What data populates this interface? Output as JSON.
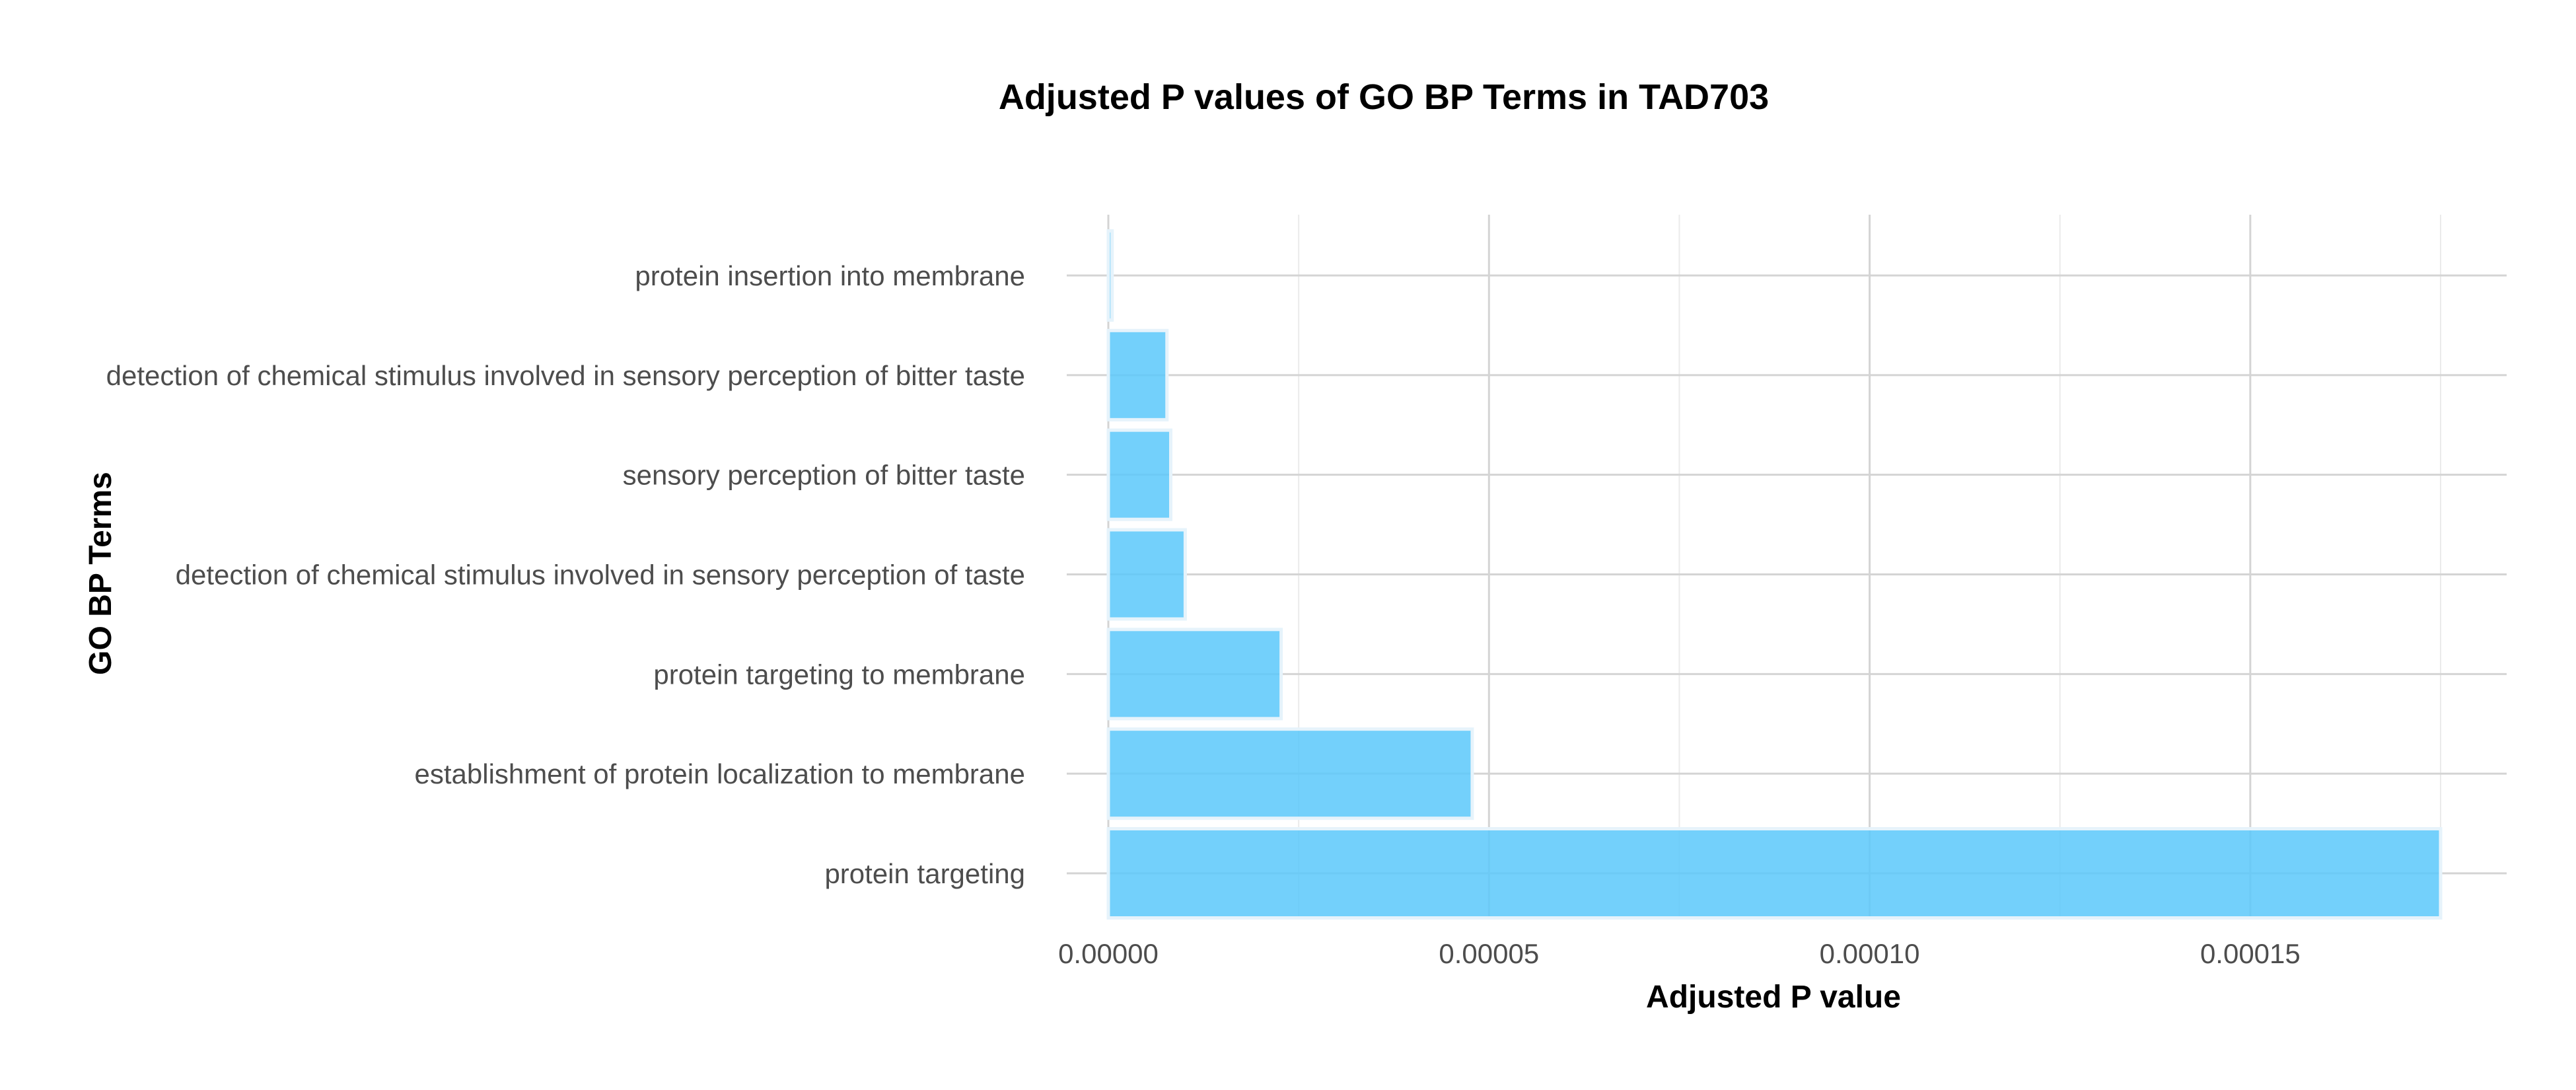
{
  "chart_data": {
    "type": "bar",
    "orientation": "horizontal",
    "title": "Adjusted P values of GO BP Terms in TAD703",
    "xlabel": "Adjusted P value",
    "ylabel": "GO BP Terms",
    "categories": [
      "protein insertion into membrane",
      "detection of chemical stimulus involved in sensory perception of bitter taste",
      "sensory perception of bitter taste",
      "detection of chemical stimulus involved in sensory perception of taste",
      "protein targeting to membrane",
      "establishment of protein localization to membrane",
      "protein targeting"
    ],
    "values": [
      5e-07,
      7.7e-06,
      8.2e-06,
      1.01e-05,
      2.27e-05,
      4.78e-05,
      0.000175
    ],
    "xlim": [
      0,
      0.000185
    ],
    "xticks": [
      0,
      5e-05,
      0.0001,
      0.00015
    ],
    "xtick_labels": [
      "0.00000",
      "0.00005",
      "0.00010",
      "0.00015"
    ],
    "grid": true,
    "bar_color": "#5bc8fa",
    "bar_edge_color": "#e6f3fb",
    "grid_color": "#d9d9d9",
    "legend": "none"
  }
}
